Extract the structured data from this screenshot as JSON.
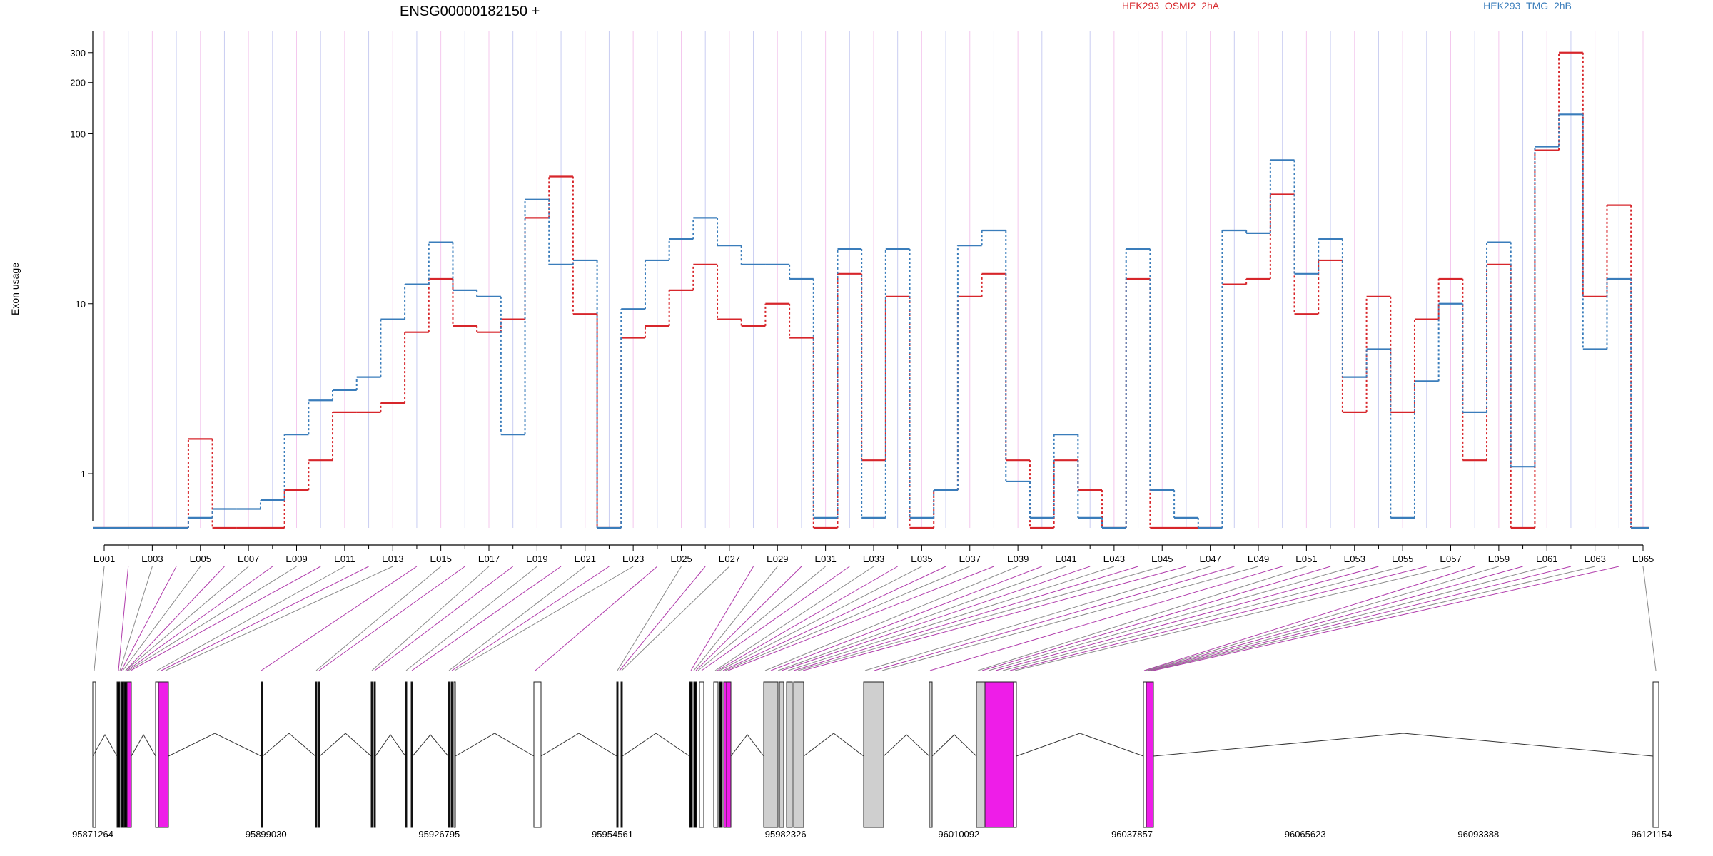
{
  "chart_data": {
    "type": "line",
    "title": "ENSG00000182150 +",
    "ylabel": "Exon usage",
    "xlabel": "",
    "y_scale": "log",
    "ylim": [
      0.48,
      400
    ],
    "y_ticks": [
      {
        "value": 1,
        "label": "1"
      },
      {
        "value": 10,
        "label": "10"
      },
      {
        "value": 100,
        "label": "100"
      },
      {
        "value": 200,
        "label": "200"
      },
      {
        "value": 300,
        "label": "300"
      }
    ],
    "x_tick_labels": [
      "E001",
      "E003",
      "E005",
      "E007",
      "E009",
      "E011",
      "E013",
      "E015",
      "E017",
      "E019",
      "E021",
      "E023",
      "E025",
      "E027",
      "E029",
      "E031",
      "E033",
      "E035",
      "E037",
      "E039",
      "E041",
      "E043",
      "E045",
      "E047",
      "E049",
      "E051",
      "E053",
      "E055",
      "E057",
      "E059",
      "E061",
      "E063",
      "E065"
    ],
    "categories": [
      "E001",
      "E002",
      "E003",
      "E004",
      "E005",
      "E006",
      "E007",
      "E008",
      "E009",
      "E010",
      "E011",
      "E012",
      "E013",
      "E014",
      "E015",
      "E016",
      "E017",
      "E018",
      "E019",
      "E020",
      "E021",
      "E022",
      "E023",
      "E024",
      "E025",
      "E026",
      "E027",
      "E028",
      "E029",
      "E030",
      "E031",
      "E032",
      "E033",
      "E034",
      "E035",
      "E036",
      "E037",
      "E038",
      "E039",
      "E040",
      "E041",
      "E042",
      "E043",
      "E044",
      "E045",
      "E046",
      "E047",
      "E048",
      "E049",
      "E050",
      "E051",
      "E052",
      "E053",
      "E054",
      "E055",
      "E056",
      "E057",
      "E058",
      "E059",
      "E060",
      "E061",
      "E062",
      "E063",
      "E064",
      "E065"
    ],
    "series": [
      {
        "name": "HEK293_OSMI2_2hA",
        "color": "#d7262b",
        "values": [
          0.48,
          0.48,
          0.48,
          0.48,
          1.6,
          0.48,
          0.48,
          0.48,
          0.8,
          1.2,
          2.3,
          2.3,
          2.6,
          6.8,
          14,
          7.4,
          6.8,
          8.1,
          32,
          56,
          8.7,
          0.48,
          6.3,
          7.4,
          12,
          17,
          8.1,
          7.4,
          10,
          6.3,
          0.48,
          15,
          1.2,
          11,
          0.48,
          0.8,
          11,
          15,
          1.2,
          0.48,
          1.2,
          0.8,
          0.48,
          14,
          0.48,
          0.48,
          0.48,
          13,
          14,
          44,
          8.7,
          18,
          2.3,
          11,
          2.3,
          8.1,
          14,
          1.2,
          17,
          0.48,
          80,
          300,
          11,
          38,
          0.48
        ]
      },
      {
        "name": "HEK293_TMG_2hB",
        "color": "#3a7dbb",
        "values": [
          0.48,
          0.48,
          0.48,
          0.48,
          0.55,
          0.62,
          0.62,
          0.7,
          1.7,
          2.7,
          3.1,
          3.7,
          8.1,
          13,
          23,
          12,
          11,
          1.7,
          41,
          17,
          18,
          0.48,
          9.3,
          18,
          24,
          32,
          22,
          17,
          17,
          14,
          0.55,
          21,
          0.55,
          21,
          0.55,
          0.8,
          22,
          27,
          0.9,
          0.55,
          1.7,
          0.55,
          0.48,
          21,
          0.8,
          0.55,
          0.48,
          27,
          26,
          70,
          15,
          24,
          3.7,
          5.4,
          0.55,
          3.5,
          10,
          2.3,
          23,
          1.1,
          84,
          130,
          5.4,
          14,
          0.48
        ]
      }
    ],
    "gene_axis": {
      "coord_ticks": [
        "95871264",
        "95899030",
        "95926795",
        "95954561",
        "95982326",
        "96010092",
        "96037857",
        "96065623",
        "96093388",
        "96121154"
      ]
    },
    "legend": {
      "placement": "top"
    }
  }
}
